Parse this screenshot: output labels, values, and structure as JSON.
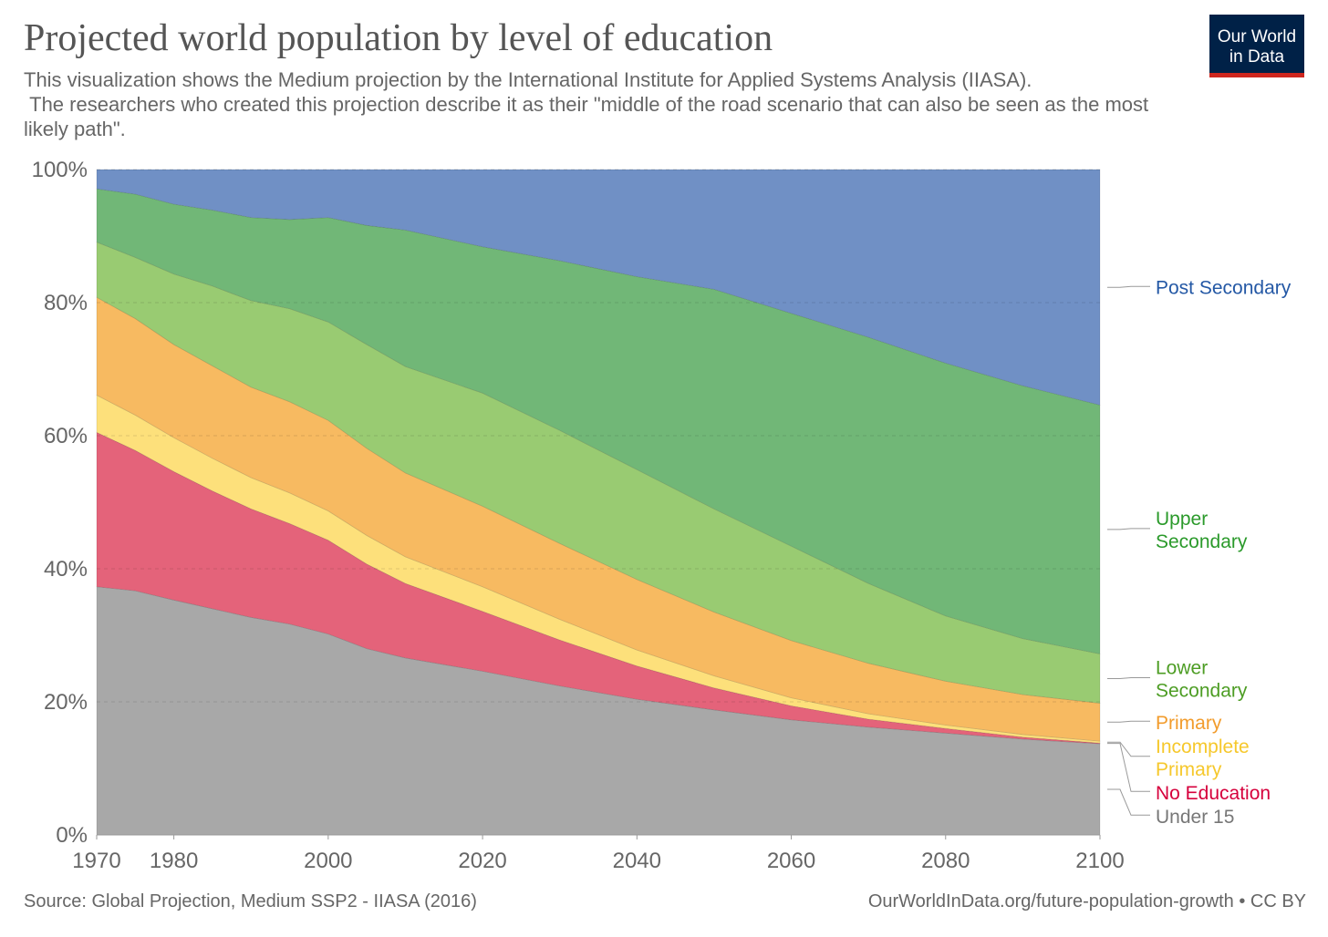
{
  "header": {
    "title": "Projected world population by level of education",
    "subtitle": "This visualization shows the Medium projection by the International Institute for Applied Systems Analysis (IIASA).\n The researchers who created this projection describe it as their \"middle of the road scenario that can also be seen as the most likely path\"."
  },
  "logo": {
    "line1": "Our World",
    "line2": "in Data",
    "bg_color": "#002147",
    "accent_color": "#ce261e"
  },
  "footer": {
    "source": "Source: Global Projection, Medium SSP2 - IIASA (2016)",
    "url": "OurWorldInData.org/future-population-growth • CC BY"
  },
  "chart_data": {
    "type": "area",
    "stacked": true,
    "relative": true,
    "x": [
      1970,
      1975,
      1980,
      1985,
      1990,
      1995,
      2000,
      2005,
      2010,
      2020,
      2030,
      2040,
      2050,
      2060,
      2070,
      2080,
      2090,
      2100
    ],
    "xlim": [
      1970,
      2100
    ],
    "ylim": [
      0,
      100
    ],
    "x_ticks": [
      "1970",
      "1980",
      "2000",
      "2020",
      "2040",
      "2060",
      "2080",
      "2100"
    ],
    "y_ticks": [
      "0%",
      "20%",
      "40%",
      "60%",
      "80%",
      "100%"
    ],
    "grid": "horizontal-dashed",
    "legend": "right",
    "series": [
      {
        "name": "Under 15",
        "color": "#a8a8a8",
        "label_color": "#777777",
        "values": [
          37.3,
          36.7,
          35.3,
          34.0,
          32.7,
          31.7,
          30.2,
          28.0,
          26.6,
          24.6,
          22.4,
          20.4,
          18.8,
          17.3,
          16.2,
          15.3,
          14.4,
          13.7
        ]
      },
      {
        "name": "No Education",
        "color": "#e4637a",
        "label_color": "#d6003c",
        "values": [
          23.2,
          21.1,
          19.3,
          17.7,
          16.3,
          15.1,
          14.1,
          12.7,
          11.2,
          9.0,
          6.9,
          5.0,
          3.3,
          2.1,
          1.2,
          0.7,
          0.3,
          0.1
        ]
      },
      {
        "name": "Incomplete Primary",
        "color": "#fde07b",
        "label_color": "#f6c82c",
        "values": [
          5.6,
          5.3,
          5.1,
          4.9,
          4.7,
          4.6,
          4.4,
          4.3,
          4.0,
          3.7,
          3.1,
          2.4,
          1.8,
          1.2,
          0.8,
          0.5,
          0.4,
          0.3
        ]
      },
      {
        "name": "Primary",
        "color": "#f7ba61",
        "label_color": "#f29c2c",
        "values": [
          14.7,
          14.5,
          14.0,
          13.9,
          13.6,
          13.7,
          13.6,
          13.1,
          12.6,
          12.1,
          11.4,
          10.6,
          9.6,
          8.6,
          7.6,
          6.6,
          6.0,
          5.7
        ]
      },
      {
        "name": "Lower Secondary",
        "color": "#99cb72",
        "label_color": "#4d9d24",
        "values": [
          8.3,
          9.2,
          10.6,
          12.0,
          13.0,
          14.0,
          14.8,
          15.6,
          16.0,
          17.0,
          17.0,
          16.5,
          15.5,
          14.2,
          12.0,
          9.8,
          8.4,
          7.4
        ]
      },
      {
        "name": "Upper Secondary",
        "color": "#71b777",
        "label_color": "#2b9a2b",
        "values": [
          8.0,
          9.5,
          10.5,
          11.4,
          12.5,
          13.4,
          15.7,
          17.9,
          20.5,
          22.0,
          25.5,
          29.0,
          33.0,
          35.0,
          37.0,
          38.0,
          38.0,
          37.4
        ]
      },
      {
        "name": "Post Secondary",
        "color": "#7090c5",
        "label_color": "#2458a5",
        "values": [
          2.9,
          3.7,
          5.2,
          6.1,
          7.2,
          7.5,
          7.2,
          8.4,
          9.1,
          11.6,
          13.7,
          16.1,
          18.0,
          21.6,
          25.2,
          29.1,
          32.5,
          35.4
        ]
      }
    ],
    "legend_labels": [
      {
        "series": "Post Secondary",
        "lines": [
          "Post Secondary"
        ]
      },
      {
        "series": "Upper Secondary",
        "lines": [
          "Upper",
          "Secondary"
        ]
      },
      {
        "series": "Lower Secondary",
        "lines": [
          "Lower",
          "Secondary"
        ]
      },
      {
        "series": "Primary",
        "lines": [
          "Primary"
        ]
      },
      {
        "series": "Incomplete Primary",
        "lines": [
          "Incomplete",
          "Primary"
        ]
      },
      {
        "series": "No Education",
        "lines": [
          "No Education"
        ]
      },
      {
        "series": "Under 15",
        "lines": [
          "Under 15"
        ]
      }
    ]
  }
}
